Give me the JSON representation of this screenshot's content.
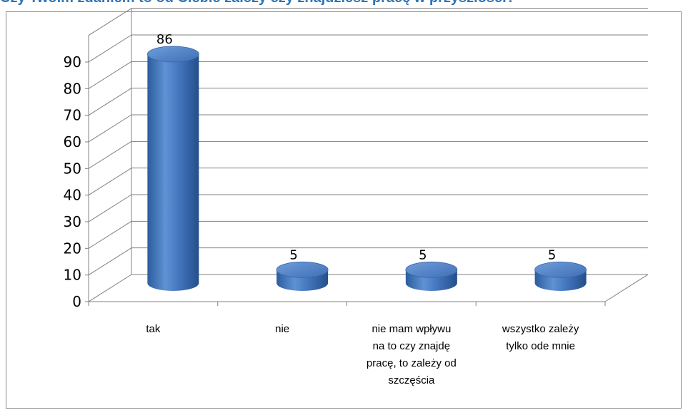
{
  "header": {
    "title": "Czy Twoim zdaniem to od Ciebie zależy czy znajdziesz pracę w przyszłości?"
  },
  "colors": {
    "bar": "#4f81bd",
    "grid": "#808080",
    "text": "#000000"
  },
  "chart_data": {
    "type": "bar",
    "style": "3d-cylinder",
    "categories": [
      [
        "tak"
      ],
      [
        "nie"
      ],
      [
        "nie mam wpływu",
        "na to czy znajdę",
        "pracę, to zależy od",
        "szczęścia"
      ],
      [
        "wszystko zależy",
        "tylko ode mnie"
      ]
    ],
    "values": [
      86,
      5,
      5,
      5
    ],
    "data_labels": [
      "86",
      "5",
      "5",
      "5"
    ],
    "y_ticks": [
      "0",
      "10",
      "20",
      "30",
      "40",
      "50",
      "60",
      "70",
      "80",
      "90"
    ],
    "ylim": [
      0,
      90
    ],
    "grid": true,
    "legend": "none"
  }
}
